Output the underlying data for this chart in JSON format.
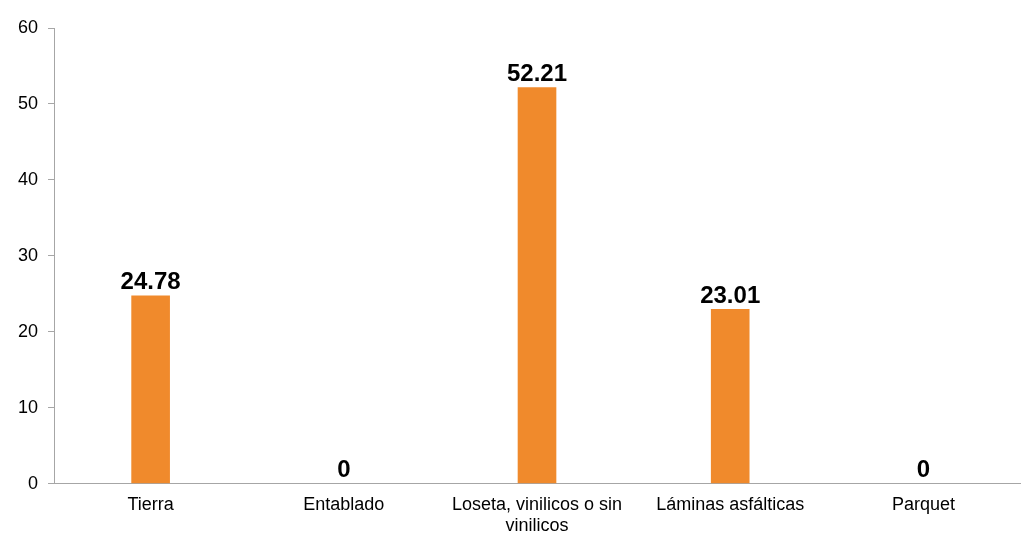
{
  "chart_data": {
    "type": "bar",
    "categories": [
      "Tierra",
      "Entablado",
      "Loseta, vinilicos o sin vinilicos",
      "Láminas asfálticas",
      "Parquet"
    ],
    "values": [
      24.78,
      0,
      52.21,
      23.01,
      0
    ],
    "color": "#f08a2c",
    "ylim": [
      0,
      60
    ],
    "yticks": [
      0,
      10,
      20,
      30,
      40,
      50,
      60
    ],
    "grid": false,
    "legend": false,
    "data_labels": true
  }
}
